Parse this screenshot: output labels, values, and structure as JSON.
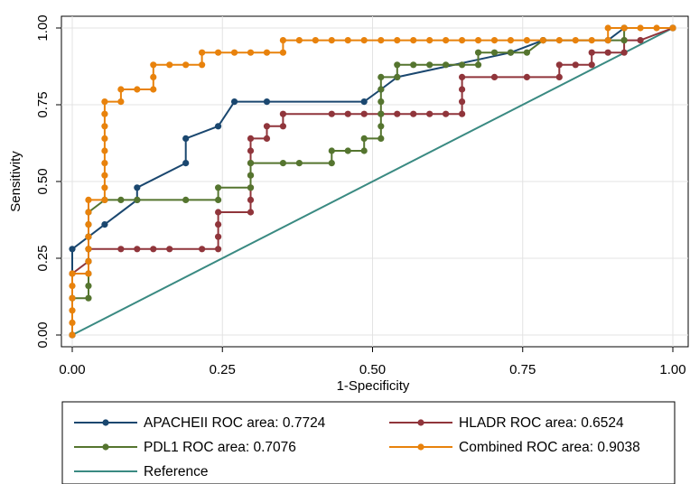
{
  "chart_data": {
    "type": "line",
    "xlabel": "1-Specificity",
    "ylabel": "Sensitivity",
    "xlim": [
      0,
      1
    ],
    "ylim": [
      0,
      1
    ],
    "x_ticks": [
      "0.00",
      "0.25",
      "0.50",
      "0.75",
      "1.00"
    ],
    "y_ticks": [
      "0.00",
      "0.25",
      "0.50",
      "0.75",
      "1.00"
    ],
    "grid": true,
    "legend_position": "bottom",
    "series": [
      {
        "name": "APACHEII ROC area: 0.7724",
        "color": "#1a476f",
        "markers": true,
        "points": [
          [
            0,
            0
          ],
          [
            0,
            0.28
          ],
          [
            0.027,
            0.32
          ],
          [
            0.054,
            0.36
          ],
          [
            0.108,
            0.44
          ],
          [
            0.108,
            0.48
          ],
          [
            0.189,
            0.56
          ],
          [
            0.189,
            0.64
          ],
          [
            0.243,
            0.68
          ],
          [
            0.27,
            0.76
          ],
          [
            0.324,
            0.76
          ],
          [
            0.486,
            0.76
          ],
          [
            0.514,
            0.8
          ],
          [
            0.541,
            0.84
          ],
          [
            0.73,
            0.92
          ],
          [
            0.784,
            0.96
          ],
          [
            0.892,
            0.96
          ],
          [
            0.919,
            1.0
          ],
          [
            1.0,
            1.0
          ]
        ]
      },
      {
        "name": "HLADR ROC area: 0.6524",
        "color": "#90353b",
        "markers": true,
        "points": [
          [
            0,
            0
          ],
          [
            0,
            0.2
          ],
          [
            0.027,
            0.24
          ],
          [
            0.027,
            0.28
          ],
          [
            0.081,
            0.28
          ],
          [
            0.108,
            0.28
          ],
          [
            0.135,
            0.28
          ],
          [
            0.162,
            0.28
          ],
          [
            0.216,
            0.28
          ],
          [
            0.243,
            0.28
          ],
          [
            0.243,
            0.32
          ],
          [
            0.243,
            0.36
          ],
          [
            0.243,
            0.4
          ],
          [
            0.297,
            0.4
          ],
          [
            0.297,
            0.44
          ],
          [
            0.297,
            0.48
          ],
          [
            0.297,
            0.52
          ],
          [
            0.297,
            0.56
          ],
          [
            0.297,
            0.6
          ],
          [
            0.297,
            0.64
          ],
          [
            0.324,
            0.64
          ],
          [
            0.324,
            0.68
          ],
          [
            0.351,
            0.68
          ],
          [
            0.351,
            0.72
          ],
          [
            0.432,
            0.72
          ],
          [
            0.459,
            0.72
          ],
          [
            0.486,
            0.72
          ],
          [
            0.514,
            0.72
          ],
          [
            0.541,
            0.72
          ],
          [
            0.568,
            0.72
          ],
          [
            0.595,
            0.72
          ],
          [
            0.622,
            0.72
          ],
          [
            0.649,
            0.72
          ],
          [
            0.649,
            0.76
          ],
          [
            0.649,
            0.8
          ],
          [
            0.649,
            0.84
          ],
          [
            0.703,
            0.84
          ],
          [
            0.757,
            0.84
          ],
          [
            0.811,
            0.84
          ],
          [
            0.811,
            0.88
          ],
          [
            0.838,
            0.88
          ],
          [
            0.865,
            0.88
          ],
          [
            0.865,
            0.92
          ],
          [
            0.892,
            0.92
          ],
          [
            0.919,
            0.92
          ],
          [
            0.919,
            0.96
          ],
          [
            0.946,
            0.96
          ],
          [
            1.0,
            1.0
          ]
        ]
      },
      {
        "name": "PDL1 ROC area: 0.7076",
        "color": "#55752f",
        "markers": true,
        "points": [
          [
            0,
            0
          ],
          [
            0,
            0.12
          ],
          [
            0.027,
            0.12
          ],
          [
            0.027,
            0.16
          ],
          [
            0.027,
            0.2
          ],
          [
            0.027,
            0.24
          ],
          [
            0.027,
            0.28
          ],
          [
            0.027,
            0.32
          ],
          [
            0.027,
            0.36
          ],
          [
            0.027,
            0.4
          ],
          [
            0.054,
            0.44
          ],
          [
            0.081,
            0.44
          ],
          [
            0.108,
            0.44
          ],
          [
            0.189,
            0.44
          ],
          [
            0.243,
            0.44
          ],
          [
            0.243,
            0.48
          ],
          [
            0.297,
            0.48
          ],
          [
            0.297,
            0.52
          ],
          [
            0.297,
            0.56
          ],
          [
            0.351,
            0.56
          ],
          [
            0.378,
            0.56
          ],
          [
            0.432,
            0.56
          ],
          [
            0.432,
            0.6
          ],
          [
            0.459,
            0.6
          ],
          [
            0.486,
            0.6
          ],
          [
            0.486,
            0.64
          ],
          [
            0.514,
            0.64
          ],
          [
            0.514,
            0.68
          ],
          [
            0.514,
            0.72
          ],
          [
            0.514,
            0.76
          ],
          [
            0.514,
            0.8
          ],
          [
            0.514,
            0.84
          ],
          [
            0.541,
            0.84
          ],
          [
            0.541,
            0.88
          ],
          [
            0.568,
            0.88
          ],
          [
            0.595,
            0.88
          ],
          [
            0.622,
            0.88
          ],
          [
            0.649,
            0.88
          ],
          [
            0.676,
            0.88
          ],
          [
            0.676,
            0.92
          ],
          [
            0.703,
            0.92
          ],
          [
            0.73,
            0.92
          ],
          [
            0.757,
            0.92
          ],
          [
            0.784,
            0.96
          ],
          [
            0.919,
            0.96
          ],
          [
            0.919,
            1.0
          ],
          [
            1.0,
            1.0
          ]
        ]
      },
      {
        "name": "Combined ROC area: 0.9038",
        "color": "#e8820c",
        "markers": true,
        "points": [
          [
            0,
            0
          ],
          [
            0,
            0.04
          ],
          [
            0,
            0.08
          ],
          [
            0,
            0.12
          ],
          [
            0,
            0.16
          ],
          [
            0,
            0.2
          ],
          [
            0.027,
            0.2
          ],
          [
            0.027,
            0.24
          ],
          [
            0.027,
            0.28
          ],
          [
            0.027,
            0.32
          ],
          [
            0.027,
            0.36
          ],
          [
            0.027,
            0.4
          ],
          [
            0.027,
            0.44
          ],
          [
            0.054,
            0.44
          ],
          [
            0.054,
            0.48
          ],
          [
            0.054,
            0.52
          ],
          [
            0.054,
            0.56
          ],
          [
            0.054,
            0.6
          ],
          [
            0.054,
            0.64
          ],
          [
            0.054,
            0.68
          ],
          [
            0.054,
            0.72
          ],
          [
            0.054,
            0.76
          ],
          [
            0.081,
            0.76
          ],
          [
            0.081,
            0.8
          ],
          [
            0.108,
            0.8
          ],
          [
            0.135,
            0.8
          ],
          [
            0.135,
            0.84
          ],
          [
            0.135,
            0.88
          ],
          [
            0.162,
            0.88
          ],
          [
            0.189,
            0.88
          ],
          [
            0.216,
            0.88
          ],
          [
            0.216,
            0.92
          ],
          [
            0.243,
            0.92
          ],
          [
            0.27,
            0.92
          ],
          [
            0.297,
            0.92
          ],
          [
            0.324,
            0.92
          ],
          [
            0.351,
            0.92
          ],
          [
            0.351,
            0.96
          ],
          [
            0.378,
            0.96
          ],
          [
            0.405,
            0.96
          ],
          [
            0.432,
            0.96
          ],
          [
            0.459,
            0.96
          ],
          [
            0.486,
            0.96
          ],
          [
            0.514,
            0.96
          ],
          [
            0.541,
            0.96
          ],
          [
            0.568,
            0.96
          ],
          [
            0.595,
            0.96
          ],
          [
            0.622,
            0.96
          ],
          [
            0.649,
            0.96
          ],
          [
            0.676,
            0.96
          ],
          [
            0.703,
            0.96
          ],
          [
            0.73,
            0.96
          ],
          [
            0.757,
            0.96
          ],
          [
            0.784,
            0.96
          ],
          [
            0.811,
            0.96
          ],
          [
            0.838,
            0.96
          ],
          [
            0.865,
            0.96
          ],
          [
            0.892,
            0.96
          ],
          [
            0.892,
            1.0
          ],
          [
            0.919,
            1.0
          ],
          [
            0.946,
            1.0
          ],
          [
            0.973,
            1.0
          ],
          [
            1.0,
            1.0
          ]
        ]
      },
      {
        "name": "Reference",
        "color": "#3a8a82",
        "markers": false,
        "points": [
          [
            0,
            0
          ],
          [
            1,
            1
          ]
        ]
      }
    ],
    "legend_layout": [
      [
        0,
        1
      ],
      [
        2,
        3
      ],
      [
        4
      ]
    ]
  }
}
